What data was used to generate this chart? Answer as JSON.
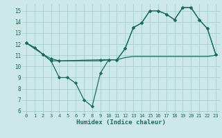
{
  "series_dip_x": [
    0,
    1,
    2,
    3,
    4,
    5,
    6,
    7,
    8,
    9,
    10,
    11,
    12,
    13,
    14,
    15,
    16,
    17,
    18,
    19,
    20,
    21,
    22,
    23
  ],
  "series_dip_y": [
    12.1,
    11.7,
    11.1,
    10.5,
    9.0,
    9.0,
    8.5,
    7.0,
    6.4,
    9.4,
    10.6,
    10.6,
    11.6,
    13.5,
    13.9,
    15.0,
    15.0,
    14.7,
    14.2,
    15.3,
    15.3,
    14.2,
    13.4,
    11.1
  ],
  "series_rise_x": [
    0,
    2,
    3,
    4,
    9,
    10,
    11,
    12,
    13,
    14,
    15,
    16,
    17,
    18,
    19,
    20,
    21,
    22,
    23
  ],
  "series_rise_y": [
    12.1,
    11.1,
    10.7,
    10.5,
    10.6,
    10.6,
    10.6,
    11.6,
    13.5,
    13.9,
    15.0,
    15.0,
    14.7,
    14.2,
    15.3,
    15.3,
    14.2,
    13.4,
    11.1
  ],
  "series_flat_x": [
    0,
    1,
    2,
    3,
    4,
    5,
    6,
    7,
    8,
    9,
    10,
    11,
    12,
    13,
    14,
    15,
    16,
    17,
    18,
    19,
    20,
    21,
    22,
    23
  ],
  "series_flat_y": [
    12.1,
    11.7,
    11.1,
    10.5,
    10.5,
    10.5,
    10.5,
    10.5,
    10.5,
    10.5,
    10.6,
    10.6,
    10.8,
    10.9,
    10.9,
    10.9,
    10.9,
    10.9,
    10.9,
    10.9,
    10.9,
    10.9,
    10.9,
    11.0
  ],
  "line_color": "#1a6b5a",
  "bg_color": "#cce8e8",
  "grid_color": "#99cccc",
  "xlabel": "Humidex (Indice chaleur)",
  "xlim": [
    -0.5,
    23.5
  ],
  "ylim": [
    5.8,
    15.6
  ],
  "yticks": [
    6,
    7,
    8,
    9,
    10,
    11,
    12,
    13,
    14,
    15
  ],
  "xticks": [
    0,
    1,
    2,
    3,
    4,
    5,
    6,
    7,
    8,
    9,
    10,
    11,
    12,
    13,
    14,
    15,
    16,
    17,
    18,
    19,
    20,
    21,
    22,
    23
  ],
  "marker": "D",
  "marker_size": 2.2,
  "line_width": 0.9,
  "tick_fontsize": 5.0,
  "xlabel_fontsize": 6.5
}
